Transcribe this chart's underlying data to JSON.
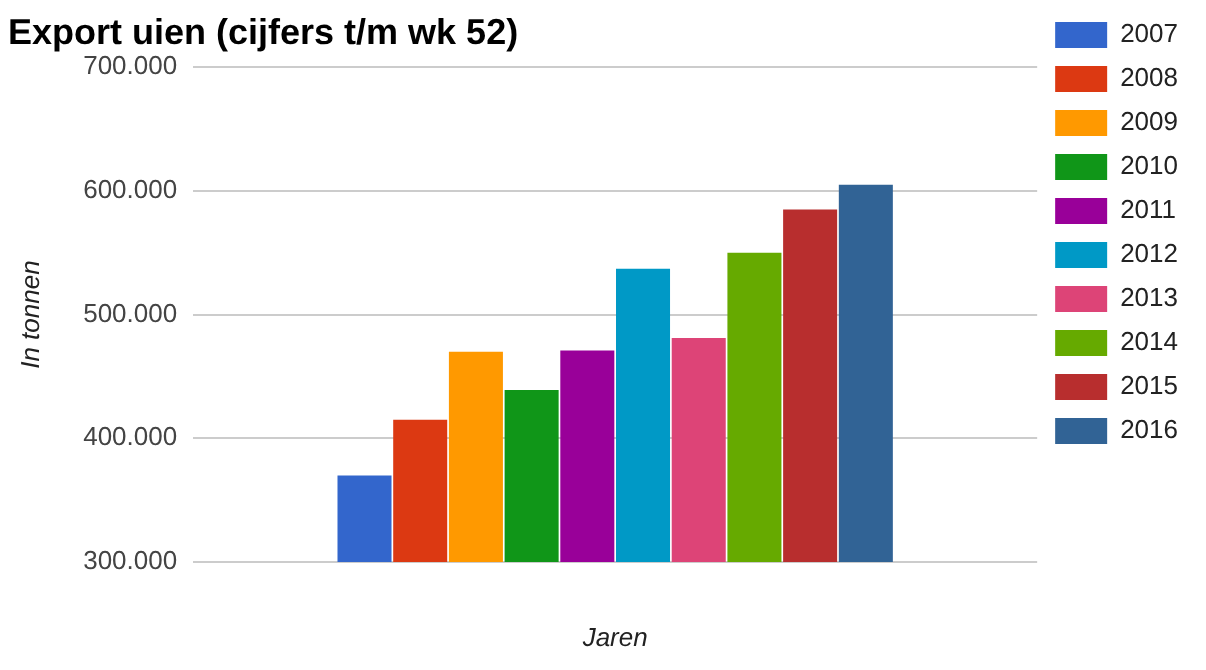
{
  "chart_data": {
    "type": "bar",
    "title": "Export uien (cijfers t/m wk 52)",
    "xlabel": "Jaren",
    "ylabel": "In tonnen",
    "categories": [
      null
    ],
    "series": [
      {
        "name": "2007",
        "color": "#3366cc",
        "values": [
          370000
        ]
      },
      {
        "name": "2008",
        "color": "#dc3912",
        "values": [
          415000
        ]
      },
      {
        "name": "2009",
        "color": "#ff9900",
        "values": [
          470000
        ]
      },
      {
        "name": "2010",
        "color": "#109618",
        "values": [
          439000
        ]
      },
      {
        "name": "2011",
        "color": "#990099",
        "values": [
          471000
        ]
      },
      {
        "name": "2012",
        "color": "#0099c6",
        "values": [
          537000
        ]
      },
      {
        "name": "2013",
        "color": "#dd4477",
        "values": [
          481000
        ]
      },
      {
        "name": "2014",
        "color": "#66aa00",
        "values": [
          550000
        ]
      },
      {
        "name": "2015",
        "color": "#b82e2e",
        "values": [
          585000
        ]
      },
      {
        "name": "2016",
        "color": "#316395",
        "values": [
          605000
        ]
      }
    ],
    "ylim": [
      300000,
      700000
    ],
    "yticks": [
      {
        "value": 300000,
        "label": "300.000"
      },
      {
        "value": 400000,
        "label": "400.000"
      },
      {
        "value": 500000,
        "label": "500.000"
      },
      {
        "value": 600000,
        "label": "600.000"
      },
      {
        "value": 700000,
        "label": "700.000"
      }
    ],
    "grid": "y",
    "legend": "right"
  }
}
